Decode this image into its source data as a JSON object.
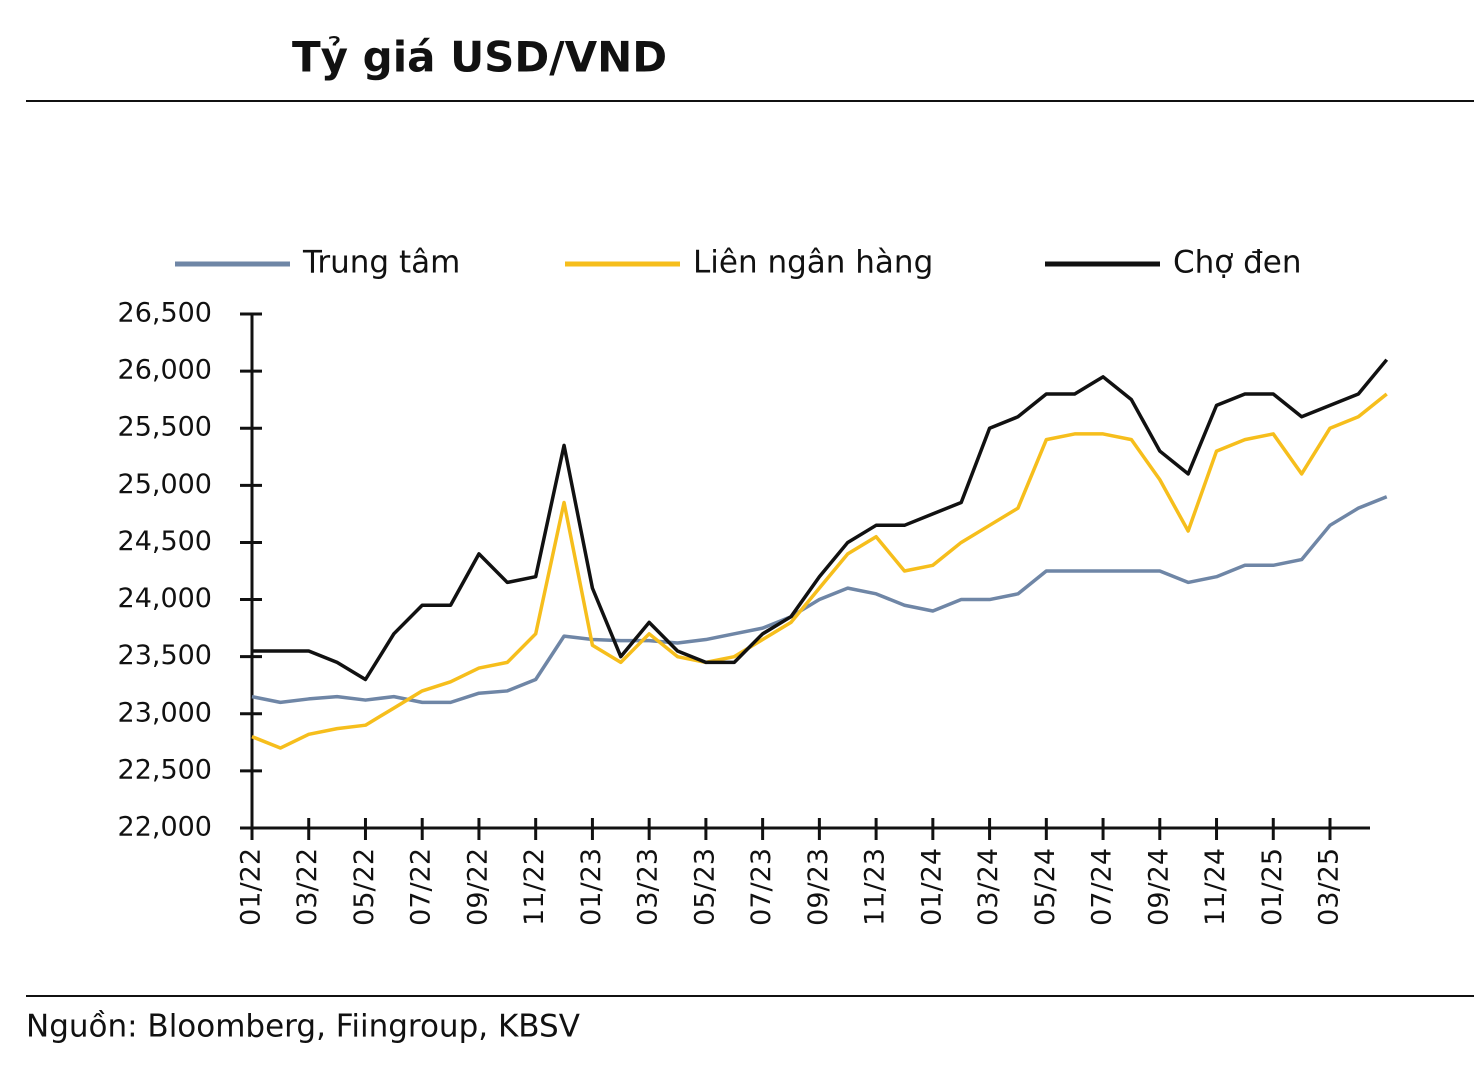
{
  "chart_data": {
    "type": "line",
    "title": "Tỷ giá USD/VND",
    "source": "Nguồn: Bloomberg, Fiingroup, KBSV",
    "categories": [
      "01/22",
      null,
      "03/22",
      null,
      "05/22",
      null,
      "07/22",
      null,
      "09/22",
      null,
      "11/22",
      null,
      "01/23",
      null,
      "03/23",
      null,
      "05/23",
      null,
      "07/23",
      null,
      "09/23",
      null,
      "11/23",
      null,
      "01/24",
      null,
      "03/24",
      null,
      "05/24",
      null,
      "07/24",
      null,
      "09/24",
      null,
      "11/24",
      null,
      "01/25",
      null,
      "03/25",
      null,
      null
    ],
    "series": [
      {
        "name": "Trung tâm",
        "color": "#6f86a6",
        "values": [
          23150,
          23100,
          23130,
          23150,
          23120,
          23150,
          23100,
          23100,
          23180,
          23200,
          23300,
          23680,
          23650,
          23640,
          23640,
          23620,
          23650,
          23700,
          23750,
          23850,
          24000,
          24100,
          24050,
          23950,
          23900,
          24000,
          24000,
          24050,
          24250,
          24250,
          24250,
          24250,
          24250,
          24150,
          24200,
          24300,
          24300,
          24350,
          24650,
          24800,
          24900
        ]
      },
      {
        "name": "Liên ngân hàng",
        "color": "#f6be1c",
        "values": [
          22800,
          22700,
          22820,
          22870,
          22900,
          23050,
          23200,
          23280,
          23400,
          23450,
          23700,
          24850,
          23600,
          23450,
          23700,
          23500,
          23450,
          23500,
          23650,
          23800,
          24100,
          24400,
          24550,
          24250,
          24300,
          24500,
          24650,
          24800,
          25400,
          25450,
          25450,
          25400,
          25050,
          24600,
          25300,
          25400,
          25450,
          25100,
          25500,
          25600,
          25800
        ]
      },
      {
        "name": "Chợ đen",
        "color": "#111111",
        "values": [
          23550,
          23550,
          23550,
          23450,
          23300,
          23700,
          23950,
          23950,
          24400,
          24150,
          24200,
          25350,
          24100,
          23500,
          23800,
          23550,
          23450,
          23450,
          23700,
          23850,
          24200,
          24500,
          24650,
          24650,
          24750,
          24850,
          25500,
          25600,
          25800,
          25800,
          25950,
          25750,
          25300,
          25100,
          25700,
          25800,
          25800,
          25600,
          25700,
          25800,
          26100
        ]
      }
    ],
    "ylim": [
      22000,
      26500
    ],
    "yticks": [
      {
        "value": 22000,
        "label": "22,000"
      },
      {
        "value": 22500,
        "label": "22,500"
      },
      {
        "value": 23000,
        "label": "23,000"
      },
      {
        "value": 23500,
        "label": "23,500"
      },
      {
        "value": 24000,
        "label": "24,000"
      },
      {
        "value": 24500,
        "label": "24,500"
      },
      {
        "value": 25000,
        "label": "25,000"
      },
      {
        "value": 25500,
        "label": "25,500"
      },
      {
        "value": 26000,
        "label": "26,000"
      },
      {
        "value": 26500,
        "label": "26,500"
      }
    ],
    "grid": false,
    "legend": "top"
  }
}
